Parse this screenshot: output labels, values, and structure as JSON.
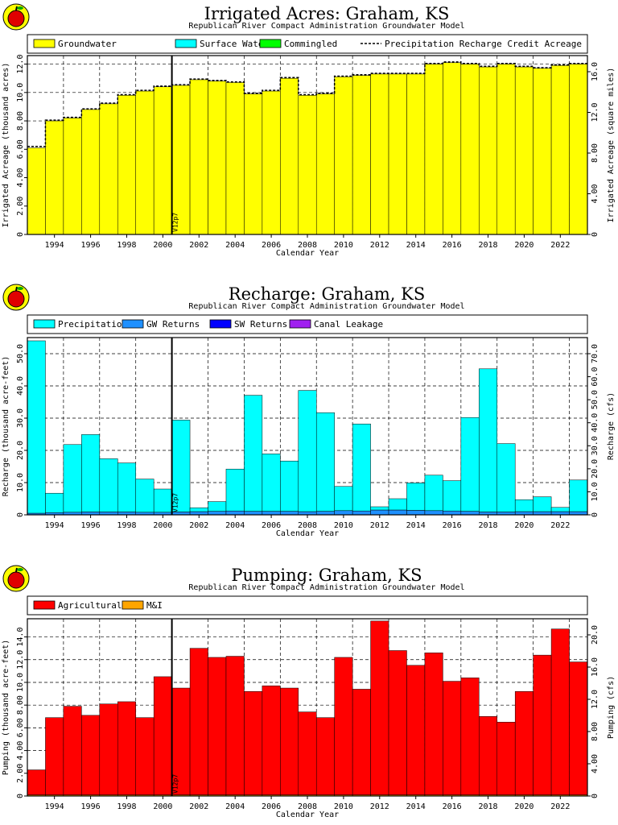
{
  "palette": {
    "groundwater": "#ffff00",
    "surface_water": "#00ffff",
    "commingled": "#00ff00",
    "precipitation": "#00ffff",
    "gw_returns": "#1e90ff",
    "sw_returns": "#0000ff",
    "canal_leakage": "#a020f0",
    "agricultural": "#ff0000",
    "mi": "#ffa500"
  },
  "logo_icon": "apple-logo-icon",
  "chart_data": [
    {
      "type": "bar",
      "title": "Irrigated Acres: Graham, KS",
      "subtitle": "Republican River Compact Administration Groundwater Model",
      "xlabel": "Calendar Year",
      "ylabel": "Irrigated Acreage (thousand acres)",
      "ylabel_right": "Irrigated Acreage (square miles)",
      "x": [
        1993,
        1994,
        1995,
        1996,
        1997,
        1998,
        1999,
        2000,
        2001,
        2002,
        2003,
        2004,
        2005,
        2006,
        2007,
        2008,
        2009,
        2010,
        2011,
        2012,
        2013,
        2014,
        2015,
        2016,
        2017,
        2018,
        2019,
        2020,
        2021,
        2022,
        2023
      ],
      "xlim": [
        1992.5,
        2023.5
      ],
      "x_ticks": [
        "1994",
        "1996",
        "1998",
        "2000",
        "2002",
        "2004",
        "2006",
        "2008",
        "2010",
        "2012",
        "2014",
        "2016",
        "2018",
        "2020",
        "2022"
      ],
      "ylim": [
        0,
        12.6
      ],
      "y_ticks": [
        "0",
        "2.00",
        "4.00",
        "6.00",
        "8.00",
        "10.0",
        "12.0"
      ],
      "y_right_ticks": [
        "0",
        "4.00",
        "8.00",
        "12.0",
        "16.0"
      ],
      "legend": [
        {
          "label": "Groundwater",
          "swatch": "groundwater"
        },
        {
          "label": "Surface Water",
          "swatch": "surface_water"
        },
        {
          "label": "Commingled",
          "swatch": "commingled"
        },
        {
          "label": "Precipitation Recharge Credit Acreage",
          "swatch": "dashed"
        }
      ],
      "marker_label": "V12p7",
      "marker_x": 2000.5,
      "series": [
        {
          "name": "Groundwater",
          "color_key": "groundwater",
          "values": [
            6.1,
            8.0,
            8.2,
            8.8,
            9.2,
            9.8,
            10.1,
            10.4,
            10.5,
            10.9,
            10.8,
            10.7,
            9.9,
            10.1,
            11.0,
            9.8,
            9.9,
            11.1,
            11.2,
            11.3,
            11.3,
            11.3,
            12.0,
            12.1,
            12.0,
            11.8,
            12.0,
            11.8,
            11.7,
            11.9,
            12.0
          ]
        },
        {
          "name": "Precipitation Recharge Credit Acreage",
          "style": "dashed",
          "values": [
            6.2,
            8.05,
            8.25,
            8.85,
            9.25,
            9.85,
            10.15,
            10.45,
            10.55,
            10.95,
            10.85,
            10.75,
            9.95,
            10.15,
            11.05,
            9.85,
            9.95,
            11.15,
            11.25,
            11.35,
            11.35,
            11.35,
            12.05,
            12.15,
            12.05,
            11.85,
            12.05,
            11.85,
            11.75,
            11.95,
            12.05
          ]
        }
      ]
    },
    {
      "type": "bar",
      "title": "Recharge: Graham, KS",
      "subtitle": "Republican River Compact Administration Groundwater Model",
      "xlabel": "Calendar Year",
      "ylabel": "Recharge (thousand acre-feet)",
      "ylabel_right": "Recharge (cfs)",
      "x": [
        1993,
        1994,
        1995,
        1996,
        1997,
        1998,
        1999,
        2000,
        2001,
        2002,
        2003,
        2004,
        2005,
        2006,
        2007,
        2008,
        2009,
        2010,
        2011,
        2012,
        2013,
        2014,
        2015,
        2016,
        2017,
        2018,
        2019,
        2020,
        2021,
        2022,
        2023
      ],
      "xlim": [
        1992.5,
        2023.5
      ],
      "x_ticks": [
        "1994",
        "1996",
        "1998",
        "2000",
        "2002",
        "2004",
        "2006",
        "2008",
        "2010",
        "2012",
        "2014",
        "2016",
        "2018",
        "2020",
        "2022"
      ],
      "ylim": [
        0,
        55
      ],
      "y_ticks": [
        "0",
        "10.0",
        "20.0",
        "30.0",
        "40.0",
        "50.0"
      ],
      "y_right_ticks": [
        "0",
        "10.0",
        "20.0",
        "30.0",
        "40.0",
        "50.0",
        "60.0",
        "70.0"
      ],
      "legend": [
        {
          "label": "Precipitation",
          "swatch": "precipitation"
        },
        {
          "label": "GW Returns",
          "swatch": "gw_returns"
        },
        {
          "label": "SW Returns",
          "swatch": "sw_returns"
        },
        {
          "label": "Canal Leakage",
          "swatch": "canal_leakage"
        }
      ],
      "marker_label": "V12p7",
      "marker_x": 2000.5,
      "series": [
        {
          "name": "GW Returns",
          "color_key": "gw_returns",
          "values": [
            0.5,
            0.7,
            0.8,
            0.9,
            0.9,
            0.9,
            0.8,
            0.8,
            0.9,
            1.0,
            1.1,
            1.2,
            1.1,
            1.1,
            1.1,
            1.0,
            1.1,
            1.3,
            1.2,
            1.5,
            1.5,
            1.4,
            1.3,
            1.2,
            1.1,
            0.9,
            0.9,
            1.0,
            1.0,
            1.0,
            1.0
          ]
        },
        {
          "name": "Precipitation",
          "color_key": "precipitation",
          "values": [
            53.5,
            6.0,
            21.0,
            24.0,
            16.5,
            15.2,
            10.3,
            7.2,
            28.5,
            1.2,
            3.0,
            13.0,
            36.0,
            17.8,
            15.6,
            37.6,
            30.6,
            7.5,
            27.0,
            1.0,
            3.5,
            8.5,
            11.0,
            9.4,
            29.1,
            44.4,
            21.2,
            3.7,
            4.6,
            1.3,
            9.8
          ]
        }
      ]
    },
    {
      "type": "bar",
      "title": "Pumping: Graham, KS",
      "subtitle": "Republican River Compact Administration Groundwater Model",
      "xlabel": "Calendar Year",
      "ylabel": "Pumping (thousand acre-feet)",
      "ylabel_right": "Pumping (cfs)",
      "x": [
        1993,
        1994,
        1995,
        1996,
        1997,
        1998,
        1999,
        2000,
        2001,
        2002,
        2003,
        2004,
        2005,
        2006,
        2007,
        2008,
        2009,
        2010,
        2011,
        2012,
        2013,
        2014,
        2015,
        2016,
        2017,
        2018,
        2019,
        2020,
        2021,
        2022,
        2023
      ],
      "xlim": [
        1992.5,
        2023.5
      ],
      "x_ticks": [
        "1994",
        "1996",
        "1998",
        "2000",
        "2002",
        "2004",
        "2006",
        "2008",
        "2010",
        "2012",
        "2014",
        "2016",
        "2018",
        "2020",
        "2022"
      ],
      "ylim": [
        0,
        15.6
      ],
      "y_ticks": [
        "0",
        "2.00",
        "4.00",
        "6.00",
        "8.00",
        "10.0",
        "12.0",
        "14.0"
      ],
      "y_right_ticks": [
        "0",
        "4.00",
        "8.00",
        "12.0",
        "16.0",
        "20.0"
      ],
      "legend": [
        {
          "label": "Agricultural",
          "swatch": "agricultural"
        },
        {
          "label": "M&I",
          "swatch": "mi"
        }
      ],
      "marker_label": "V12p7",
      "marker_x": 2000.5,
      "series": [
        {
          "name": "M&I",
          "color_key": "mi",
          "values": [
            0.1,
            0.1,
            0.1,
            0.1,
            0.1,
            0.1,
            0.1,
            0.1,
            0.1,
            0.1,
            0.1,
            0.1,
            0.1,
            0.1,
            0.1,
            0.1,
            0.1,
            0.1,
            0.1,
            0.1,
            0.1,
            0.1,
            0.1,
            0.1,
            0.1,
            0.1,
            0.1,
            0.1,
            0.1,
            0.1,
            0.1
          ]
        },
        {
          "name": "Agricultural",
          "color_key": "agricultural",
          "values": [
            2.2,
            6.8,
            7.8,
            7.0,
            8.0,
            8.2,
            6.8,
            10.4,
            9.4,
            12.9,
            12.1,
            12.2,
            9.1,
            9.6,
            9.4,
            7.3,
            6.8,
            12.1,
            9.3,
            15.3,
            12.7,
            11.4,
            12.5,
            10.0,
            10.3,
            6.9,
            6.4,
            9.1,
            12.3,
            14.6,
            11.7
          ]
        }
      ]
    }
  ]
}
